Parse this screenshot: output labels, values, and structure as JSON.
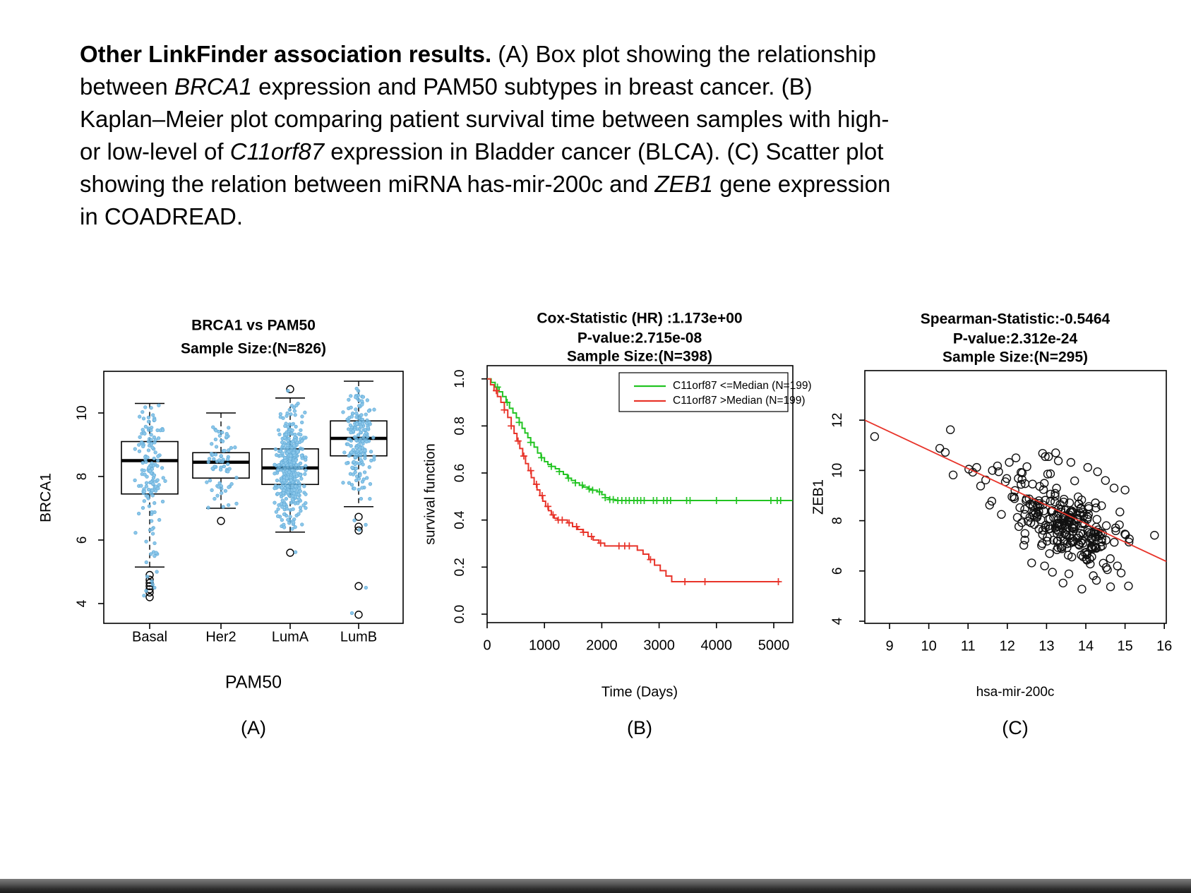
{
  "caption": {
    "lines": [
      [
        {
          "t": "Other LinkFinder association results.",
          "b": true
        },
        {
          "t": " (A) Box plot showing the relationship"
        }
      ],
      [
        {
          "t": "between "
        },
        {
          "t": "BRCA1",
          "i": true
        },
        {
          "t": " expression and PAM50 subtypes in breast cancer. (B)"
        }
      ],
      [
        {
          "t": "Kaplan–Meier plot comparing patient survival time between samples with high-"
        }
      ],
      [
        {
          "t": "or low-level of "
        },
        {
          "t": "C11orf87",
          "i": true
        },
        {
          "t": " expression in Bladder cancer (BLCA). (C) Scatter plot"
        }
      ],
      [
        {
          "t": "showing the relation between miRNA has-mir-200c and "
        },
        {
          "t": "ZEB1",
          "i": true
        },
        {
          "t": " gene expression"
        }
      ],
      [
        {
          "t": "in COADREAD."
        }
      ]
    ]
  },
  "colors": {
    "jitter_blue_fill": "#7cc0e8",
    "jitter_blue_stroke": "#4d9fd1",
    "km_green": "#23c423",
    "km_red": "#e8342a",
    "scatter_line_red": "#e8342a",
    "axis_black": "#000000"
  },
  "chart_data": [
    {
      "id": "A",
      "type": "box",
      "title_lines": [
        "BRCA1 vs PAM50",
        "Sample Size:(N=826)"
      ],
      "xlabel": "PAM50",
      "ylabel": "BRCA1",
      "panel_letter": "(A)",
      "categories": [
        "Basal",
        "Her2",
        "LumA",
        "LumB"
      ],
      "yticks": [
        "4",
        "6",
        "8",
        "10"
      ],
      "ylim": [
        3.4,
        11.3
      ],
      "grid": false,
      "groups": [
        {
          "name": "Basal",
          "n": 140,
          "lo": 5.15,
          "q1": 7.45,
          "med": 8.5,
          "q3": 9.1,
          "hi": 10.3,
          "outliers": [
            4.9,
            4.75,
            4.65,
            4.55,
            4.45,
            4.35,
            4.2
          ],
          "extra_points": [
            4.25,
            4.4,
            4.5,
            4.6,
            4.7,
            4.85,
            5.0,
            5.3,
            5.6,
            5.9,
            6.2
          ]
        },
        {
          "name": "Her2",
          "n": 67,
          "lo": 7.0,
          "q1": 7.95,
          "med": 8.45,
          "q3": 8.75,
          "hi": 10.0,
          "outliers": [
            6.6
          ],
          "extra_points": [
            7.1,
            7.3
          ]
        },
        {
          "name": "LumA",
          "n": 419,
          "lo": 6.25,
          "q1": 7.75,
          "med": 8.27,
          "q3": 8.87,
          "hi": 10.47,
          "outliers": [
            10.75,
            5.6
          ],
          "extra_points": [
            5.62,
            6.4,
            6.55,
            10.7
          ]
        },
        {
          "name": "LumB",
          "n": 190,
          "lo": 7.05,
          "q1": 8.65,
          "med": 9.2,
          "q3": 9.75,
          "hi": 11.0,
          "outliers": [
            6.73,
            6.42,
            6.3,
            4.55,
            3.65
          ],
          "extra_points": [
            6.32,
            6.48,
            6.62,
            3.7,
            4.5
          ]
        }
      ]
    },
    {
      "id": "B",
      "type": "km",
      "title_lines": [
        "Cox-Statistic (HR) :1.173e+00",
        "P-value:2.715e-08",
        "Sample Size:(N=398)"
      ],
      "xlabel": "Time (Days)",
      "ylabel": "survival function",
      "panel_letter": "(B)",
      "xticks": [
        "0",
        "1000",
        "2000",
        "3000",
        "4000",
        "5000"
      ],
      "yticks": [
        "0.0",
        "0.2",
        "0.4",
        "0.6",
        "0.8",
        "1.0"
      ],
      "xlim": [
        0,
        5330
      ],
      "ylim": [
        -0.04,
        1.06
      ],
      "legend": {
        "items": [
          {
            "label": "C11orf87 <=Median (N=199)",
            "color": "#23c423"
          },
          {
            "label": "C11orf87 >Median (N=199)",
            "color": "#e8342a"
          }
        ]
      },
      "series": [
        {
          "name": "C11orf87 <=Median (N=199)",
          "color": "#23c423",
          "steps": [
            [
              0,
              1.0
            ],
            [
              70,
              0.985
            ],
            [
              140,
              0.965
            ],
            [
              210,
              0.945
            ],
            [
              270,
              0.925
            ],
            [
              330,
              0.9
            ],
            [
              390,
              0.875
            ],
            [
              450,
              0.855
            ],
            [
              510,
              0.835
            ],
            [
              560,
              0.815
            ],
            [
              610,
              0.79
            ],
            [
              660,
              0.77
            ],
            [
              710,
              0.75
            ],
            [
              760,
              0.73
            ],
            [
              820,
              0.71
            ],
            [
              880,
              0.685
            ],
            [
              940,
              0.665
            ],
            [
              1000,
              0.648
            ],
            [
              1060,
              0.636
            ],
            [
              1120,
              0.628
            ],
            [
              1190,
              0.618
            ],
            [
              1260,
              0.606
            ],
            [
              1330,
              0.594
            ],
            [
              1400,
              0.578
            ],
            [
              1470,
              0.568
            ],
            [
              1540,
              0.558
            ],
            [
              1610,
              0.548
            ],
            [
              1680,
              0.54
            ],
            [
              1760,
              0.532
            ],
            [
              1840,
              0.527
            ],
            [
              1920,
              0.52
            ],
            [
              2000,
              0.508
            ],
            [
              2060,
              0.495
            ],
            [
              2130,
              0.487
            ],
            [
              2230,
              0.483
            ],
            [
              5330,
              0.483
            ]
          ],
          "censor_times": [
            180,
            350,
            560,
            760,
            950,
            1120,
            1260,
            1420,
            1540,
            1660,
            1780,
            1840,
            1960,
            2060,
            2140,
            2200,
            2280,
            2350,
            2420,
            2480,
            2560,
            2620,
            2680,
            2740,
            2900,
            2960,
            3080,
            3140,
            3200,
            3480,
            3540,
            4000,
            4350,
            4950,
            5060,
            5120
          ]
        },
        {
          "name": "C11orf87 >Median (N=199)",
          "color": "#e8342a",
          "steps": [
            [
              0,
              1.0
            ],
            [
              60,
              0.975
            ],
            [
              120,
              0.95
            ],
            [
              180,
              0.925
            ],
            [
              240,
              0.9
            ],
            [
              300,
              0.868
            ],
            [
              360,
              0.836
            ],
            [
              420,
              0.8
            ],
            [
              470,
              0.768
            ],
            [
              520,
              0.736
            ],
            [
              570,
              0.704
            ],
            [
              620,
              0.672
            ],
            [
              670,
              0.64
            ],
            [
              720,
              0.61
            ],
            [
              770,
              0.58
            ],
            [
              820,
              0.552
            ],
            [
              870,
              0.528
            ],
            [
              920,
              0.504
            ],
            [
              970,
              0.48
            ],
            [
              1020,
              0.458
            ],
            [
              1070,
              0.44
            ],
            [
              1120,
              0.422
            ],
            [
              1170,
              0.408
            ],
            [
              1230,
              0.4
            ],
            [
              1400,
              0.388
            ],
            [
              1490,
              0.372
            ],
            [
              1580,
              0.36
            ],
            [
              1670,
              0.348
            ],
            [
              1760,
              0.33
            ],
            [
              1850,
              0.315
            ],
            [
              1950,
              0.302
            ],
            [
              2050,
              0.29
            ],
            [
              2620,
              0.272
            ],
            [
              2720,
              0.255
            ],
            [
              2820,
              0.232
            ],
            [
              2920,
              0.208
            ],
            [
              3020,
              0.185
            ],
            [
              3120,
              0.162
            ],
            [
              3220,
              0.138
            ],
            [
              5110,
              0.138
            ]
          ],
          "censor_times": [
            160,
            300,
            420,
            540,
            640,
            760,
            860,
            960,
            1060,
            1150,
            1240,
            1310,
            1430,
            1560,
            1680,
            1820,
            1980,
            2300,
            2400,
            2480,
            2850,
            3450,
            3800,
            5080
          ]
        }
      ]
    },
    {
      "id": "C",
      "type": "scatter",
      "title_lines": [
        "Spearman-Statistic:-0.5464",
        "P-value:2.312e-24",
        "Sample Size:(N=295)"
      ],
      "xlabel": "hsa-mir-200c",
      "ylabel": "ZEB1",
      "panel_letter": "(C)",
      "xticks": [
        "9",
        "10",
        "11",
        "12",
        "13",
        "14",
        "15",
        "16"
      ],
      "yticks": [
        "4",
        "6",
        "8",
        "10",
        "12"
      ],
      "xlim": [
        8.37,
        16.05
      ],
      "ylim": [
        3.9,
        14.0
      ],
      "fit_line": {
        "x1": 8.37,
        "y1": 12.0,
        "x2": 16.05,
        "y2": 6.38,
        "color": "#e8342a"
      },
      "points_explicit": [
        [
          8.62,
          11.35
        ],
        [
          10.55,
          11.62
        ],
        [
          10.28,
          10.88
        ],
        [
          10.42,
          10.72
        ],
        [
          10.62,
          9.82
        ],
        [
          11.02,
          10.05
        ],
        [
          11.12,
          9.93
        ],
        [
          11.22,
          10.12
        ],
        [
          11.32,
          9.38
        ],
        [
          11.45,
          9.62
        ],
        [
          11.55,
          8.62
        ],
        [
          11.62,
          10.0
        ],
        [
          11.78,
          9.95
        ],
        [
          11.85,
          8.25
        ],
        [
          11.95,
          9.55
        ],
        [
          12.05,
          10.32
        ],
        [
          12.12,
          8.95
        ],
        [
          12.22,
          10.5
        ],
        [
          12.28,
          9.68
        ],
        [
          12.32,
          8.52
        ],
        [
          12.38,
          9.9
        ],
        [
          12.42,
          7.02
        ],
        [
          12.5,
          10.15
        ],
        [
          12.62,
          6.32
        ],
        [
          12.72,
          8.3
        ],
        [
          12.9,
          10.68
        ],
        [
          13.05,
          10.55
        ],
        [
          13.3,
          10.38
        ],
        [
          13.62,
          10.32
        ],
        [
          14.05,
          10.12
        ],
        [
          14.3,
          9.95
        ],
        [
          14.5,
          9.6
        ],
        [
          14.72,
          9.3
        ],
        [
          15.0,
          9.22
        ],
        [
          15.1,
          7.15
        ],
        [
          15.75,
          7.42
        ],
        [
          14.9,
          5.92
        ],
        [
          14.55,
          6.05
        ],
        [
          13.9,
          5.28
        ],
        [
          13.42,
          5.52
        ],
        [
          13.15,
          5.95
        ],
        [
          12.95,
          6.2
        ]
      ],
      "cluster": {
        "n": 250,
        "cx": 13.55,
        "sdx": 0.72,
        "intercept": 17.9,
        "slope": -0.74,
        "sdy": 0.75,
        "x_clip": [
          11.3,
          15.3
        ],
        "y_clip": [
          5.2,
          10.7
        ]
      }
    }
  ]
}
